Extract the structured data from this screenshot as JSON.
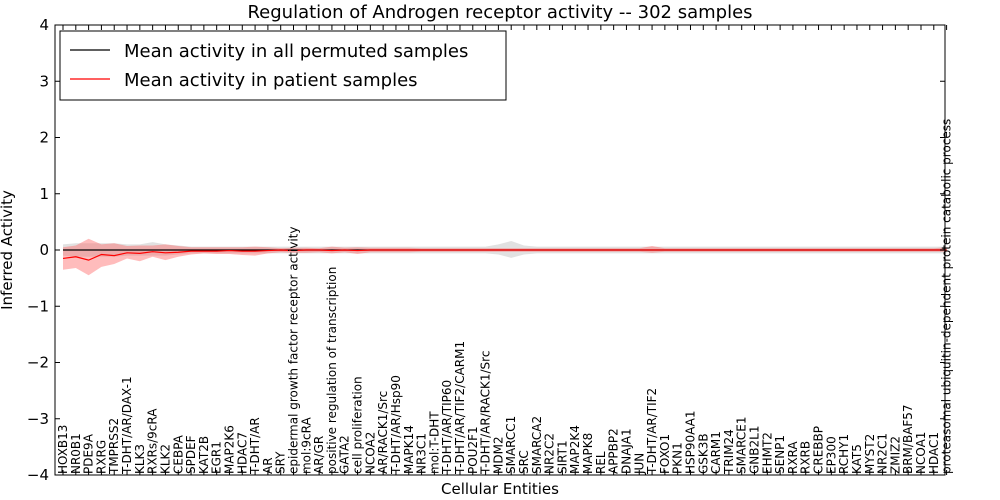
{
  "chart_data": {
    "type": "line",
    "title": "Regulation of Androgen receptor activity -- 302 samples",
    "xlabel": "Cellular Entities",
    "ylabel": "Inferred Activity",
    "ylim": [
      -4,
      4
    ],
    "yticks": [
      -4,
      -3,
      -2,
      -1,
      0,
      1,
      2,
      3,
      4
    ],
    "ytick_labels": [
      "−4",
      "−3",
      "−2",
      "−1",
      "0",
      "1",
      "2",
      "3",
      "4"
    ],
    "grid": false,
    "legend_position": "top-left",
    "categories": [
      "HOXB13",
      "NR0B1",
      "PDE9A",
      "RXRG",
      "TMPRSS2",
      "T-DHT/AR/DAX-1",
      "KLK3",
      "RXRs/9cRA",
      "KLK2",
      "CEBPA",
      "SPDEF",
      "KAT2B",
      "EGR1",
      "MAP2K6",
      "HDAC7",
      "T-DHT/AR",
      "AR",
      "SRY",
      "epidermal growth factor receptor activity",
      "mol:9cRA",
      "AR/GR",
      "positive regulation of transcription",
      "GATA2",
      "cell proliferation",
      "NCOA2",
      "AR/RACK1/Src",
      "T-DHT/AR/Hsp90",
      "MAPK14",
      "NR3C1",
      "mol:T-DHT",
      "T-DHT/AR/TIP60",
      "T-DHT/AR/TIF2/CARM1",
      "POU2F1",
      "T-DHT/AR/RACK1/Src",
      "MDM2",
      "SMARCC1",
      "SRC",
      "SMARCA2",
      "NR2C2",
      "SIRT1",
      "MAP2K4",
      "MAPK8",
      "REL",
      "APPBP2",
      "DNAJA1",
      "JUN",
      "T-DHT/AR/TIF2",
      "FOXO1",
      "PKN1",
      "HSP90AA1",
      "GSK3B",
      "CARM1",
      "TRIM24",
      "SMARCE1",
      "GNB2L1",
      "EHMT2",
      "SENP1",
      "RXRA",
      "RXRB",
      "CREBBP",
      "EP300",
      "RCHY1",
      "KAT5",
      "MYST2",
      "NR2C1",
      "ZMIZ2",
      "BRM/BAF57",
      "NCOA1",
      "HDAC1",
      "proteasomal ubiquitin-dependent protein catabolic process"
    ],
    "series": [
      {
        "name": "Mean activity in all permuted samples",
        "color": "#000000",
        "values": [
          0,
          0,
          0,
          0,
          0,
          0,
          0,
          0,
          0,
          0,
          0,
          0,
          0,
          0,
          0,
          0,
          0,
          0,
          0,
          0,
          0,
          0,
          0,
          0,
          0,
          0,
          0,
          0,
          0,
          0,
          0,
          0,
          0,
          0,
          0,
          0,
          0,
          0,
          0,
          0,
          0,
          0,
          0,
          0,
          0,
          0,
          0,
          0,
          0,
          0,
          0,
          0,
          0,
          0,
          0,
          0,
          0,
          0,
          0,
          0,
          0,
          0,
          0,
          0,
          0,
          0,
          0,
          0,
          0,
          0
        ],
        "lower": [
          -0.1,
          -0.12,
          -0.12,
          -0.12,
          -0.12,
          -0.1,
          -0.1,
          -0.1,
          -0.1,
          -0.08,
          -0.06,
          -0.06,
          -0.06,
          -0.06,
          -0.06,
          -0.06,
          -0.06,
          -0.06,
          -0.06,
          -0.06,
          -0.06,
          -0.06,
          -0.06,
          -0.06,
          -0.06,
          -0.06,
          -0.06,
          -0.06,
          -0.06,
          -0.06,
          -0.06,
          -0.06,
          -0.06,
          -0.06,
          -0.08,
          -0.14,
          -0.08,
          -0.06,
          -0.06,
          -0.06,
          -0.06,
          -0.06,
          -0.06,
          -0.06,
          -0.06,
          -0.06,
          -0.06,
          -0.06,
          -0.06,
          -0.06,
          -0.06,
          -0.06,
          -0.06,
          -0.06,
          -0.06,
          -0.06,
          -0.06,
          -0.06,
          -0.06,
          -0.06,
          -0.06,
          -0.06,
          -0.06,
          -0.06,
          -0.06,
          -0.06,
          -0.06,
          -0.06,
          -0.06,
          -0.06
        ],
        "upper": [
          0.1,
          0.12,
          0.12,
          0.12,
          0.12,
          0.1,
          0.1,
          0.14,
          0.1,
          0.08,
          0.06,
          0.06,
          0.06,
          0.06,
          0.06,
          0.06,
          0.06,
          0.06,
          0.06,
          0.06,
          0.06,
          0.06,
          0.06,
          0.06,
          0.06,
          0.06,
          0.06,
          0.06,
          0.06,
          0.06,
          0.06,
          0.06,
          0.06,
          0.06,
          0.1,
          0.16,
          0.08,
          0.06,
          0.06,
          0.06,
          0.06,
          0.06,
          0.06,
          0.06,
          0.06,
          0.06,
          0.06,
          0.06,
          0.06,
          0.06,
          0.06,
          0.06,
          0.06,
          0.06,
          0.06,
          0.06,
          0.06,
          0.06,
          0.06,
          0.06,
          0.06,
          0.06,
          0.06,
          0.06,
          0.06,
          0.06,
          0.06,
          0.06,
          0.06,
          0.06
        ]
      },
      {
        "name": "Mean activity in patient samples",
        "color": "#ff0000",
        "values": [
          -0.15,
          -0.12,
          -0.18,
          -0.08,
          -0.1,
          -0.05,
          -0.06,
          -0.03,
          -0.05,
          -0.04,
          -0.02,
          -0.02,
          -0.02,
          -0.01,
          -0.02,
          -0.02,
          -0.01,
          0,
          -0.01,
          0,
          0,
          -0.01,
          0,
          -0.01,
          0,
          0,
          0,
          0,
          0,
          0,
          0,
          0,
          0,
          0,
          0,
          0,
          0,
          0,
          0,
          0,
          0,
          0,
          0,
          0,
          0,
          0,
          0,
          0,
          0,
          0,
          0,
          0,
          0,
          0,
          0,
          0,
          0,
          0,
          0,
          0,
          0,
          0,
          0,
          0,
          0,
          0,
          0,
          0,
          0,
          0
        ],
        "lower": [
          -0.35,
          -0.32,
          -0.45,
          -0.3,
          -0.25,
          -0.15,
          -0.2,
          -0.12,
          -0.18,
          -0.12,
          -0.08,
          -0.06,
          -0.07,
          -0.07,
          -0.09,
          -0.1,
          -0.06,
          -0.04,
          -0.05,
          -0.05,
          -0.04,
          -0.06,
          -0.04,
          -0.07,
          -0.04,
          -0.04,
          -0.04,
          -0.04,
          -0.03,
          -0.03,
          -0.03,
          -0.03,
          -0.03,
          -0.03,
          -0.03,
          -0.03,
          -0.03,
          -0.03,
          -0.03,
          -0.03,
          -0.03,
          -0.03,
          -0.03,
          -0.03,
          -0.03,
          -0.03,
          -0.05,
          -0.03,
          -0.03,
          -0.03,
          -0.03,
          -0.03,
          -0.03,
          -0.03,
          -0.03,
          -0.03,
          -0.03,
          -0.03,
          -0.03,
          -0.03,
          -0.03,
          -0.03,
          -0.03,
          -0.03,
          -0.03,
          -0.03,
          -0.03,
          -0.03,
          -0.03,
          -0.03
        ],
        "upper": [
          0.05,
          0.08,
          0.2,
          0.1,
          0.12,
          0.07,
          0.08,
          0.08,
          0.1,
          0.07,
          0.05,
          0.05,
          0.05,
          0.05,
          0.05,
          0.06,
          0.05,
          0.03,
          0.04,
          0.04,
          0.03,
          0.06,
          0.04,
          0.05,
          0.04,
          0.04,
          0.04,
          0.04,
          0.03,
          0.03,
          0.03,
          0.03,
          0.03,
          0.03,
          0.03,
          0.03,
          0.03,
          0.03,
          0.03,
          0.03,
          0.03,
          0.03,
          0.03,
          0.03,
          0.03,
          0.03,
          0.07,
          0.03,
          0.03,
          0.03,
          0.03,
          0.03,
          0.03,
          0.03,
          0.03,
          0.03,
          0.03,
          0.03,
          0.03,
          0.03,
          0.03,
          0.03,
          0.03,
          0.03,
          0.03,
          0.03,
          0.03,
          0.03,
          0.03,
          0.05
        ]
      }
    ]
  }
}
